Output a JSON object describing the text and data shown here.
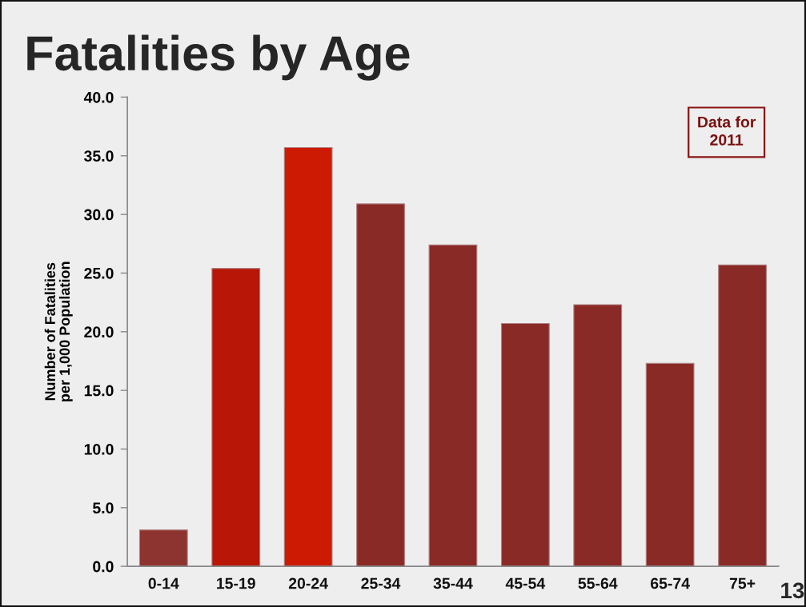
{
  "chart_data": {
    "type": "bar",
    "title": "Fatalities by Age",
    "ylabel": "Number of Fatalities\nper 1,000 Population",
    "categories": [
      "0-14",
      "15-19",
      "20-24",
      "25-34",
      "35-44",
      "45-54",
      "55-64",
      "65-74",
      "75+"
    ],
    "values": [
      3.1,
      25.4,
      35.7,
      30.9,
      27.4,
      20.7,
      22.3,
      17.3,
      25.7
    ],
    "colors": [
      "#8e3430",
      "#b81606",
      "#cc1a03",
      "#8a2a26",
      "#8a2a26",
      "#8a2a26",
      "#8a2a26",
      "#8a2a26",
      "#8a2a26"
    ],
    "ylim": [
      0,
      40
    ],
    "yticks": [
      {
        "value": 0,
        "label": "0.0"
      },
      {
        "value": 5,
        "label": "5.0"
      },
      {
        "value": 10,
        "label": "10.0"
      },
      {
        "value": 15,
        "label": "15.0"
      },
      {
        "value": 20,
        "label": "20.0"
      },
      {
        "value": 25,
        "label": "25.0"
      },
      {
        "value": 30,
        "label": "30.0"
      },
      {
        "value": 35,
        "label": "35.0"
      },
      {
        "value": 40,
        "label": "40.0"
      }
    ],
    "annotations": [
      "Data for\n2011",
      "13"
    ],
    "grid": false,
    "legend": false
  }
}
